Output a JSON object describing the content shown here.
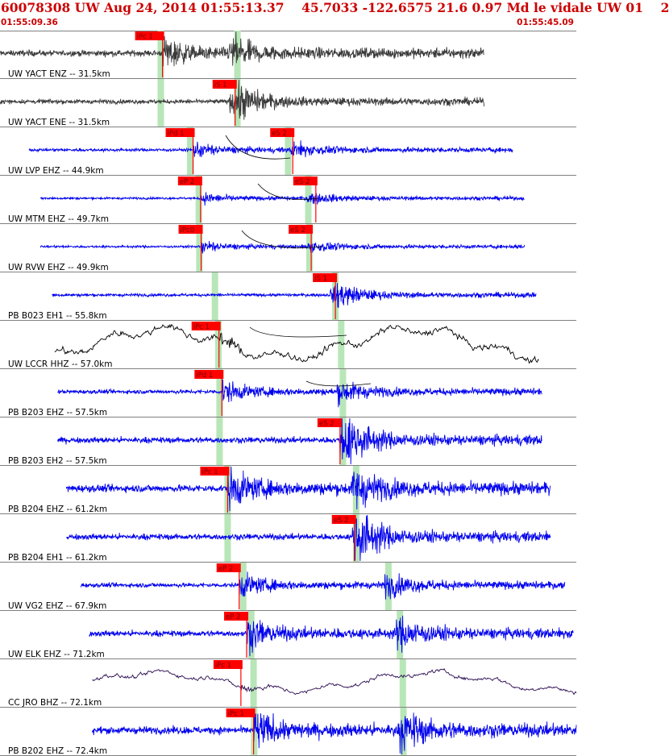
{
  "header": {
    "title": "60078308 UW Aug 24, 2014 01:55:13.37    45.7033 -122.6575 21.6 0.97 Md le vidale UW 01    2",
    "time_start": "01:55:09.36",
    "time_end": "01:55:45.09"
  },
  "colors": {
    "pick_flag": "#ff0000",
    "pick_text": "#7a0000",
    "theoretical_band": "#b8e6b8",
    "divider": "#808080",
    "trace_colors": [
      "#3a3a3a",
      "#0000ee",
      "#000000",
      "#2a0a50"
    ]
  },
  "traces": [
    {
      "label": "UW YACT ENZ -- 31.5km",
      "color": "#3a3a3a",
      "start": 0.0,
      "end": 0.84,
      "amp": 0.16,
      "smooth": 0,
      "bands": [
        0.279,
        0.412
      ],
      "picks": [
        {
          "text": "iPc 1",
          "t": 0.282
        }
      ],
      "arrival": 0.405
    },
    {
      "label": "UW YACT ENE -- 31.5km",
      "color": "#3a3a3a",
      "start": 0.0,
      "end": 0.84,
      "amp": 0.12,
      "smooth": 0,
      "bands": [
        0.279,
        0.412
      ],
      "picks": [
        {
          "text": "iS 1",
          "t": 0.408
        }
      ],
      "arrival": 0.405
    },
    {
      "label": "UW LVP EHZ -- 44.9km",
      "color": "#0000ee",
      "start": 0.05,
      "end": 0.89,
      "amp": 0.08,
      "smooth": 0,
      "bands": [
        0.33,
        0.5
      ],
      "picks": [
        {
          "text": "iPd 1",
          "t": 0.335
        },
        {
          "text": "eS 2",
          "t": 0.508
        }
      ],
      "arrival": 0.512
    },
    {
      "label": "UW MTM EHZ -- 49.7km",
      "color": "#0000ee",
      "start": 0.07,
      "end": 0.91,
      "amp": 0.06,
      "smooth": 0,
      "bands": [
        0.345,
        0.535
      ],
      "picks": [
        {
          "text": "eP 2",
          "t": 0.348
        },
        {
          "text": "eS 2",
          "t": 0.548
        }
      ],
      "arrival": 0.54
    },
    {
      "label": "UW RVW EHZ -- 49.9km",
      "color": "#0000ee",
      "start": 0.07,
      "end": 0.91,
      "amp": 0.06,
      "smooth": 0,
      "bands": [
        0.346,
        0.537
      ],
      "picks": [
        {
          "text": "iPc0",
          "t": 0.349
        },
        {
          "text": "eS 2",
          "t": 0.54
        }
      ],
      "arrival": 0.54
    },
    {
      "label": "PB B023 EH1 -- 55.8km",
      "color": "#0000ee",
      "start": 0.09,
      "end": 0.93,
      "amp": 0.08,
      "smooth": 0,
      "bands": [
        0.373,
        0.582
      ],
      "picks": [
        {
          "text": "iS 1",
          "t": 0.582
        }
      ],
      "arrival": 0.58
    },
    {
      "label": "UW LCCR HHZ -- 57.0km",
      "color": "#000000",
      "start": 0.095,
      "end": 0.935,
      "amp": 0.36,
      "smooth": 3,
      "bands": [
        0.379,
        0.592
      ],
      "picks": [
        {
          "text": "iPc 1",
          "t": 0.38
        }
      ],
      "arrival": 0.636
    },
    {
      "label": "PB B203 EHZ -- 57.5km",
      "color": "#0000ee",
      "start": 0.1,
      "end": 0.94,
      "amp": 0.11,
      "smooth": 0,
      "bands": [
        0.381,
        0.595
      ],
      "picks": [
        {
          "text": "iPd 1",
          "t": 0.385
        }
      ],
      "arrival": 0.592
    },
    {
      "label": "PB B203 EH2 -- 57.5km",
      "color": "#0000ee",
      "start": 0.1,
      "end": 0.94,
      "amp": 0.16,
      "smooth": 0,
      "bands": [
        0.381,
        0.595
      ],
      "picks": [
        {
          "text": "eS 2",
          "t": 0.59
        }
      ],
      "arrival": 0.6
    },
    {
      "label": "PB B204 EHZ -- 61.2km",
      "color": "#0000ee",
      "start": 0.115,
      "end": 0.955,
      "amp": 0.2,
      "smooth": 0,
      "bands": [
        0.395,
        0.618
      ],
      "picks": [
        {
          "text": "iPc 1",
          "t": 0.395
        }
      ],
      "arrival": 0.618
    },
    {
      "label": "PB B204 EH1 -- 61.2km",
      "color": "#0000ee",
      "start": 0.115,
      "end": 0.955,
      "amp": 0.16,
      "smooth": 0,
      "bands": [
        0.395,
        0.618
      ],
      "picks": [
        {
          "text": "eS 2",
          "t": 0.615
        }
      ],
      "arrival": 0.618
    },
    {
      "label": "UW VG2 EHZ -- 67.9km",
      "color": "#0000ee",
      "start": 0.14,
      "end": 0.98,
      "amp": 0.12,
      "smooth": 0,
      "bands": [
        0.422,
        0.674
      ],
      "picks": [
        {
          "text": "eP 2",
          "t": 0.415
        }
      ],
      "arrival": 0.674
    },
    {
      "label": "UW ELK EHZ -- 71.2km",
      "color": "#0000ee",
      "start": 0.155,
      "end": 0.995,
      "amp": 0.16,
      "smooth": 0,
      "bands": [
        0.436,
        0.694
      ],
      "picks": [
        {
          "text": "eP 2",
          "t": 0.428
        }
      ],
      "arrival": 0.694
    },
    {
      "label": "CC JRO BHZ -- 72.1km",
      "color": "#2a0a50",
      "start": 0.16,
      "end": 1.0,
      "amp": 0.22,
      "smooth": 4,
      "bands": [
        0.44,
        0.699
      ],
      "picks": [
        {
          "text": "iPc 1",
          "t": 0.418
        }
      ],
      "arrival": 0.699
    },
    {
      "label": "PB B202 EHZ -- 72.4km",
      "color": "#0000ee",
      "start": 0.16,
      "end": 1.0,
      "amp": 0.2,
      "smooth": 0,
      "bands": [
        0.441,
        0.7
      ],
      "picks": [
        {
          "text": "iPc 1",
          "t": 0.44
        }
      ],
      "arrival": 0.7
    }
  ]
}
